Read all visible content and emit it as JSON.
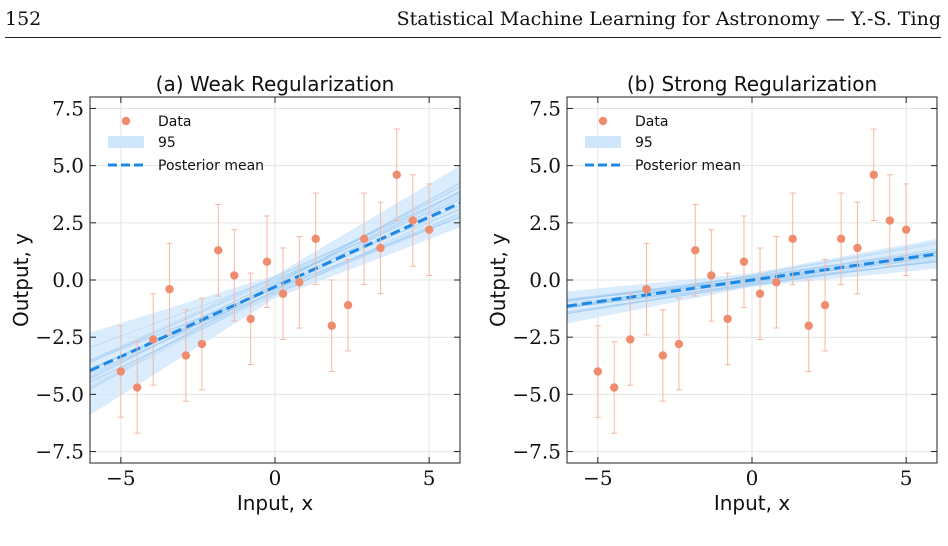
{
  "header": {
    "page_number": "152",
    "running_title": "Statistical Machine Learning for Astronomy — Y.-S. Ting"
  },
  "colors": {
    "data": "#f08c6e",
    "error_bar": "#f4b8a4",
    "band": "#cfe6fb",
    "sample_line": "#8cc4f2",
    "mean_line": "#1e88e5",
    "grid": "#e4e4e4",
    "axis": "#222222"
  },
  "chart_data": [
    {
      "type": "scatter",
      "title": "(a) Weak Regularization",
      "xlabel": "Input, x",
      "ylabel": "Output, y",
      "xlim": [
        -6,
        6
      ],
      "ylim": [
        -8,
        8
      ],
      "xticks": [
        -5,
        0,
        5
      ],
      "xtick_labels": [
        "−5",
        "0",
        "5"
      ],
      "yticks": [
        -7.5,
        -5.0,
        -2.5,
        0.0,
        2.5,
        5.0,
        7.5
      ],
      "ytick_labels": [
        "−7.5",
        "−5.0",
        "−2.5",
        "0.0",
        "2.5",
        "5.0",
        "7.5"
      ],
      "grid": true,
      "legend": {
        "placement": "top-left",
        "entries": [
          "Data",
          "95",
          "Posterior mean"
        ]
      },
      "data_points": {
        "x": [
          -5.0,
          -4.47,
          -3.95,
          -3.42,
          -2.89,
          -2.37,
          -1.84,
          -1.32,
          -0.79,
          -0.26,
          0.26,
          0.79,
          1.32,
          1.84,
          2.37,
          2.89,
          3.42,
          3.95,
          4.47,
          5.0
        ],
        "y": [
          -4.0,
          -4.7,
          -2.6,
          -0.4,
          -3.3,
          -2.8,
          1.3,
          0.2,
          -1.7,
          0.8,
          -0.6,
          -0.1,
          1.8,
          -2.0,
          -1.1,
          1.8,
          1.4,
          4.6,
          2.6,
          2.2
        ],
        "yerr": 2.0
      },
      "posterior_mean": {
        "intercept": -0.3,
        "slope": 0.61
      },
      "band_95": {
        "at_x": [
          -6,
          0,
          6
        ],
        "lower": [
          -5.9,
          -0.8,
          2.3
        ],
        "upper": [
          -2.3,
          0.2,
          5.0
        ]
      },
      "posterior_samples": {
        "intercepts": [
          -0.55,
          -0.2,
          -0.35,
          0.05,
          -0.45,
          -0.1,
          -0.6,
          -0.25,
          0.1,
          -0.4,
          -0.15,
          -0.5,
          -0.3,
          0.0,
          -0.65,
          -0.05,
          -0.38,
          -0.22,
          0.15,
          -0.48
        ],
        "slopes": [
          0.55,
          0.68,
          0.6,
          0.5,
          0.72,
          0.64,
          0.58,
          0.75,
          0.62,
          0.53,
          0.7,
          0.57,
          0.66,
          0.59,
          0.63,
          0.69,
          0.52,
          0.74,
          0.61,
          0.67
        ]
      }
    },
    {
      "type": "scatter",
      "title": "(b) Strong Regularization",
      "xlabel": "Input, x",
      "ylabel": "Output, y",
      "xlim": [
        -6,
        6
      ],
      "ylim": [
        -8,
        8
      ],
      "xticks": [
        -5,
        0,
        5
      ],
      "xtick_labels": [
        "−5",
        "0",
        "5"
      ],
      "yticks": [
        -7.5,
        -5.0,
        -2.5,
        0.0,
        2.5,
        5.0,
        7.5
      ],
      "ytick_labels": [
        "−7.5",
        "−5.0",
        "−2.5",
        "0.0",
        "2.5",
        "5.0",
        "7.5"
      ],
      "grid": true,
      "legend": {
        "placement": "top-left",
        "entries": [
          "Data",
          "95",
          "Posterior mean"
        ]
      },
      "data_points": {
        "x": [
          -5.0,
          -4.47,
          -3.95,
          -3.42,
          -2.89,
          -2.37,
          -1.84,
          -1.32,
          -0.79,
          -0.26,
          0.26,
          0.79,
          1.32,
          1.84,
          2.37,
          2.89,
          3.42,
          3.95,
          4.47,
          5.0
        ],
        "y": [
          -4.0,
          -4.7,
          -2.6,
          -0.4,
          -3.3,
          -2.8,
          1.3,
          0.2,
          -1.7,
          0.8,
          -0.6,
          -0.1,
          1.8,
          -2.0,
          -1.1,
          1.8,
          1.4,
          4.6,
          2.6,
          2.2
        ],
        "yerr": 2.0
      },
      "posterior_mean": {
        "intercept": 0.0,
        "slope": 0.19
      },
      "band_95": {
        "at_x": [
          -6,
          0,
          6
        ],
        "lower": [
          -1.9,
          -0.3,
          0.5
        ],
        "upper": [
          -0.5,
          0.3,
          1.8
        ]
      },
      "posterior_samples": {
        "intercepts": [
          -0.2,
          0.1,
          -0.1,
          0.2,
          -0.25,
          0.05,
          -0.15,
          0.15,
          0.0,
          -0.05,
          0.22,
          -0.18,
          0.08,
          -0.08,
          0.12,
          -0.22,
          0.18,
          -0.12,
          0.03,
          -0.02
        ],
        "slopes": [
          0.17,
          0.21,
          0.15,
          0.23,
          0.19,
          0.16,
          0.22,
          0.18,
          0.2,
          0.14,
          0.24,
          0.17,
          0.2,
          0.19,
          0.16,
          0.21,
          0.18,
          0.22,
          0.15,
          0.2
        ]
      }
    }
  ]
}
